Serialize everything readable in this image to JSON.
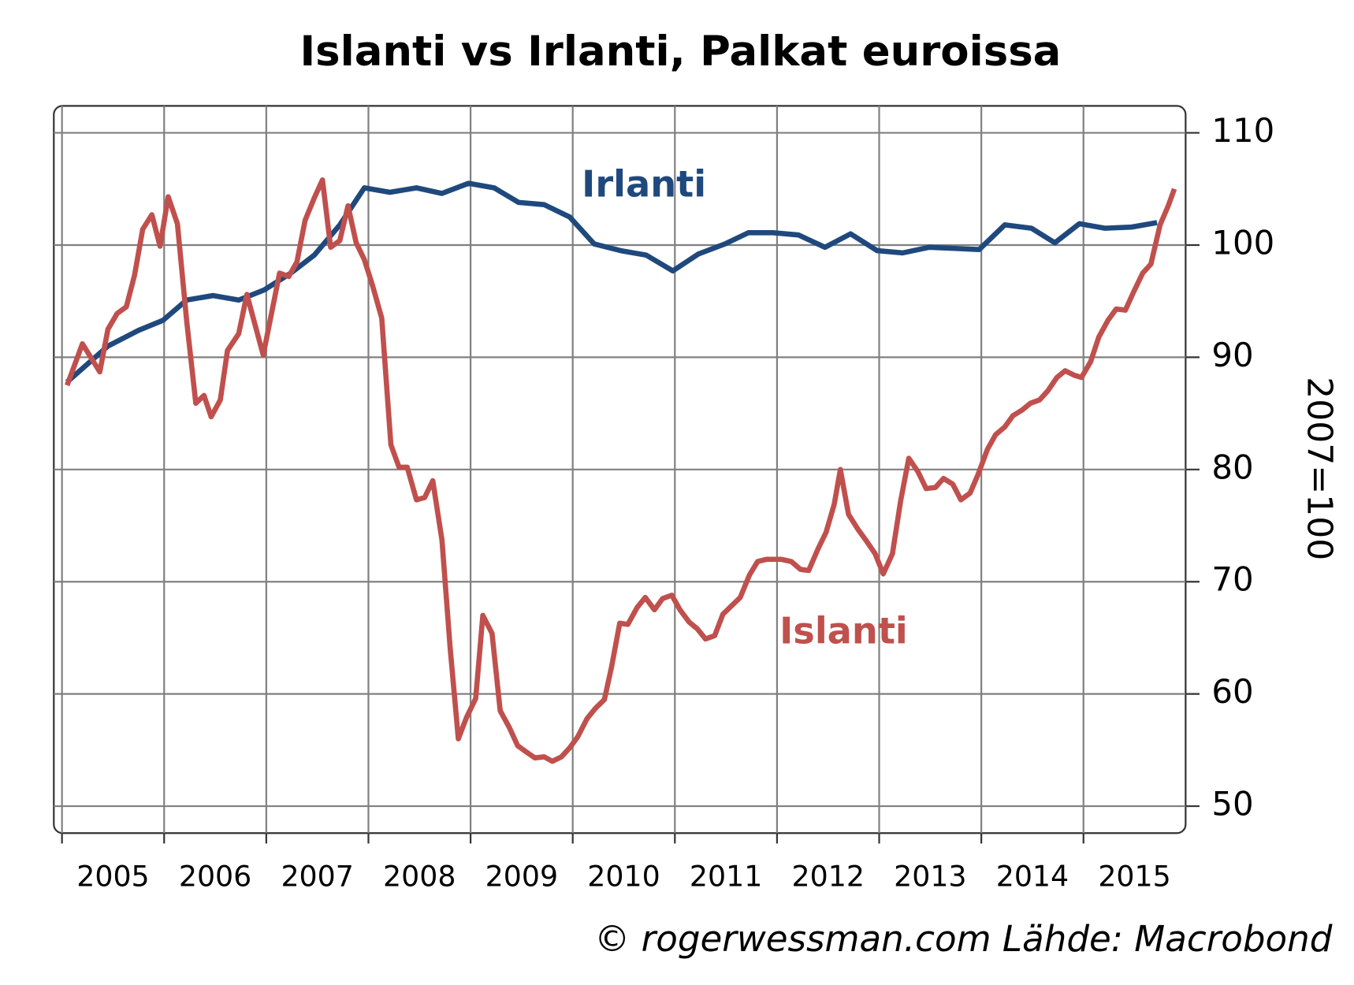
{
  "chart_data": {
    "type": "line",
    "title": "Islanti vs Irlanti, Palkat euroissa",
    "y_label": "2007=100",
    "source": "© rogerwessman.com Lähde: Macrobond",
    "xlim": [
      2004.92,
      2016.0
    ],
    "xticks": [
      2005,
      2006,
      2007,
      2008,
      2009,
      2010,
      2011,
      2012,
      2013,
      2014,
      2015
    ],
    "ylim": [
      47.6,
      112.4
    ],
    "yticks": [
      50,
      60,
      70,
      80,
      90,
      100,
      110
    ],
    "grid": true,
    "series": [
      {
        "name": "Irlanti",
        "color": "#1f497d",
        "x": [
          2005.05,
          2005.45,
          2005.75,
          2005.99,
          2006.22,
          2006.48,
          2006.73,
          2006.98,
          2007.24,
          2007.47,
          2007.72,
          2007.96,
          2008.21,
          2008.47,
          2008.72,
          2008.98,
          2009.23,
          2009.47,
          2009.72,
          2009.97,
          2010.21,
          2010.47,
          2010.72,
          2010.98,
          2011.23,
          2011.49,
          2011.72,
          2011.96,
          2012.21,
          2012.47,
          2012.72,
          2012.98,
          2013.23,
          2013.49,
          2013.74,
          2013.98,
          2014.23,
          2014.49,
          2014.72,
          2014.96,
          2015.21,
          2015.47,
          2015.72
        ],
        "values": [
          87.8,
          91.0,
          92.4,
          93.3,
          95.1,
          95.5,
          95.1,
          96.0,
          97.5,
          99.1,
          101.8,
          105.1,
          104.7,
          105.1,
          104.6,
          105.5,
          105.1,
          103.8,
          103.6,
          102.5,
          100.1,
          99.5,
          99.1,
          97.7,
          99.2,
          100.1,
          101.1,
          101.1,
          100.9,
          99.8,
          101.0,
          99.5,
          99.3,
          99.8,
          99.7,
          99.6,
          101.8,
          101.5,
          100.2,
          101.9,
          101.5,
          101.6,
          102.0
        ]
      },
      {
        "name": "Islanti",
        "color": "#c0504d",
        "x": [
          2005.05,
          2005.2,
          2005.37,
          2005.45,
          2005.54,
          2005.63,
          2005.71,
          2005.79,
          2005.88,
          2005.96,
          2006.04,
          2006.13,
          2006.22,
          2006.31,
          2006.39,
          2006.46,
          2006.55,
          2006.62,
          2006.73,
          2006.81,
          2006.97,
          2007.13,
          2007.22,
          2007.3,
          2007.38,
          2007.47,
          2007.55,
          2007.63,
          2007.72,
          2007.8,
          2007.88,
          2007.96,
          2008.04,
          2008.13,
          2008.22,
          2008.3,
          2008.38,
          2008.47,
          2008.55,
          2008.63,
          2008.72,
          2008.8,
          2008.88,
          2008.96,
          2009.05,
          2009.12,
          2009.21,
          2009.29,
          2009.38,
          2009.46,
          2009.55,
          2009.63,
          2009.72,
          2009.8,
          2009.89,
          2009.97,
          2010.05,
          2010.14,
          2010.22,
          2010.31,
          2010.38,
          2010.46,
          2010.54,
          2010.63,
          2010.71,
          2010.8,
          2010.88,
          2010.97,
          2011.05,
          2011.14,
          2011.22,
          2011.3,
          2011.39,
          2011.47,
          2011.56,
          2011.64,
          2011.73,
          2011.81,
          2011.9,
          2012.04,
          2012.14,
          2012.23,
          2012.31,
          2012.4,
          2012.48,
          2012.56,
          2012.62,
          2012.7,
          2012.79,
          2012.87,
          2012.96,
          2013.04,
          2013.13,
          2013.21,
          2013.29,
          2013.38,
          2013.46,
          2013.55,
          2013.63,
          2013.72,
          2013.8,
          2013.89,
          2013.97,
          2014.06,
          2014.14,
          2014.23,
          2014.31,
          2014.4,
          2014.48,
          2014.57,
          2014.65,
          2014.74,
          2014.82,
          2014.91,
          2014.98,
          2015.07,
          2015.15,
          2015.24,
          2015.32,
          2015.41,
          2015.49,
          2015.58,
          2015.66,
          2015.75,
          2015.83,
          2015.89
        ],
        "values": [
          87.5,
          91.2,
          88.7,
          92.5,
          93.9,
          94.5,
          97.3,
          101.4,
          102.7,
          99.9,
          104.3,
          101.9,
          93.3,
          85.9,
          86.6,
          84.7,
          86.2,
          90.6,
          92.1,
          95.6,
          90.2,
          97.5,
          97.2,
          98.5,
          102.2,
          104.2,
          105.8,
          99.8,
          100.4,
          103.5,
          100.2,
          98.7,
          96.4,
          93.5,
          82.2,
          80.2,
          80.2,
          77.3,
          77.5,
          79.0,
          73.7,
          64.1,
          56.0,
          57.9,
          59.6,
          67.0,
          65.4,
          58.5,
          57.0,
          55.4,
          54.8,
          54.3,
          54.4,
          54.0,
          54.4,
          55.2,
          56.2,
          57.8,
          58.7,
          59.5,
          62.4,
          66.3,
          66.2,
          67.7,
          68.6,
          67.5,
          68.5,
          68.8,
          67.5,
          66.4,
          65.8,
          64.9,
          65.2,
          67.1,
          67.9,
          68.6,
          70.6,
          71.8,
          72.0,
          72.0,
          71.8,
          71.1,
          71.0,
          72.9,
          74.4,
          76.9,
          80.0,
          76.0,
          74.7,
          73.7,
          72.5,
          70.7,
          72.5,
          77.2,
          81.0,
          79.8,
          78.3,
          78.4,
          79.2,
          78.7,
          77.3,
          77.9,
          79.6,
          81.8,
          83.1,
          83.8,
          84.8,
          85.3,
          85.9,
          86.2,
          87.0,
          88.2,
          88.8,
          88.4,
          88.2,
          89.6,
          91.8,
          93.3,
          94.3,
          94.2,
          95.8,
          97.5,
          98.3,
          101.8,
          103.5,
          105.0
        ]
      }
    ]
  }
}
